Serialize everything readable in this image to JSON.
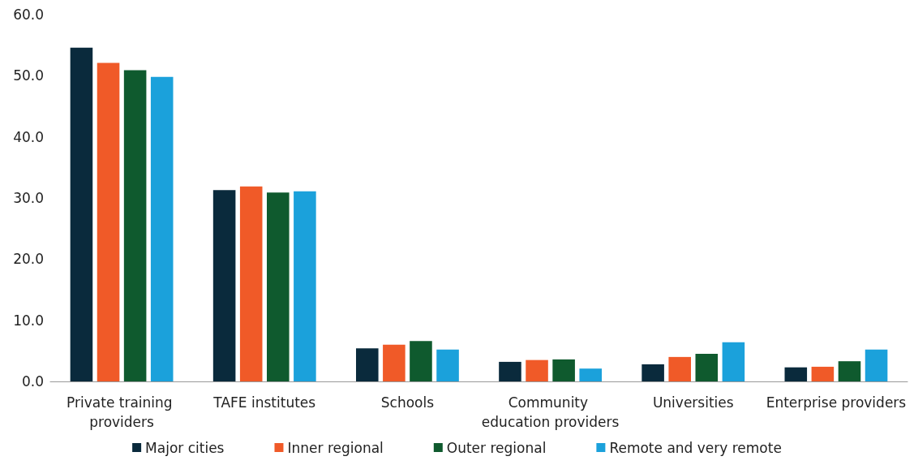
{
  "chart_data": {
    "type": "bar",
    "categories": [
      "Private training providers",
      "TAFE institutes",
      "Schools",
      "Community education providers",
      "Universities",
      "Enterprise providers"
    ],
    "series": [
      {
        "name": "Major cities",
        "color": "#0a2a3c",
        "values": [
          54.6,
          31.3,
          5.4,
          3.2,
          2.8,
          2.3
        ]
      },
      {
        "name": "Inner regional",
        "color": "#f05a28",
        "values": [
          52.1,
          31.9,
          6.0,
          3.5,
          4.0,
          2.4
        ]
      },
      {
        "name": "Outer regional",
        "color": "#0f5a2e",
        "values": [
          50.9,
          30.9,
          6.6,
          3.6,
          4.5,
          3.3
        ]
      },
      {
        "name": "Remote and very remote",
        "color": "#1ba1db",
        "values": [
          49.8,
          31.1,
          5.2,
          2.1,
          6.4,
          5.2
        ]
      }
    ],
    "ylim": [
      0,
      60
    ],
    "yticks": [
      {
        "value": 0,
        "label": "0.0"
      },
      {
        "value": 10,
        "label": "10.0"
      },
      {
        "value": 20,
        "label": "20.0"
      },
      {
        "value": 30,
        "label": "30.0"
      },
      {
        "value": 40,
        "label": "40.0"
      },
      {
        "value": 50,
        "label": "50.0"
      },
      {
        "value": 60,
        "label": "60.0"
      }
    ],
    "grid": false,
    "legend": "bottom",
    "marker": "square"
  }
}
